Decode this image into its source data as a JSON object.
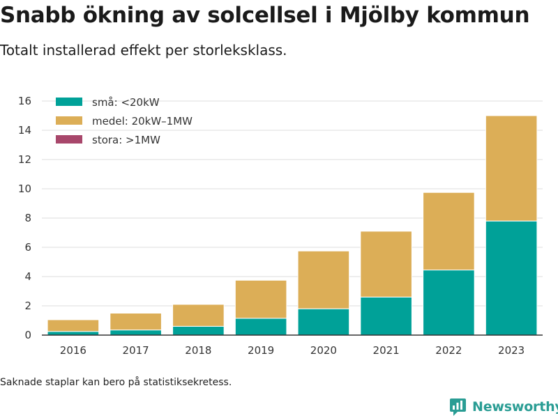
{
  "header": {
    "title": "Snabb ökning av solcellsel i Mjölby kommun",
    "subtitle": "Totalt installerad effekt per storleksklass."
  },
  "footer": {
    "note": "Saknade staplar kan bero på statistiksekretess.",
    "brand": "Newsworthy",
    "brand_icon": "bar-chart-logo-icon",
    "brand_color": "#2a9d94"
  },
  "chart_data": {
    "type": "bar",
    "stacked": true,
    "title": "Snabb ökning av solcellsel i Mjölby kommun",
    "subtitle": "Totalt installerad effekt per storleksklass.",
    "xlabel": "",
    "ylabel": "",
    "categories": [
      "2016",
      "2017",
      "2018",
      "2019",
      "2020",
      "2021",
      "2022",
      "2023"
    ],
    "ylim": [
      0,
      16
    ],
    "yticks": [
      0,
      2,
      4,
      6,
      8,
      10,
      12,
      14,
      16
    ],
    "grid": "horizontal",
    "legend_position": "top-left",
    "series": [
      {
        "name": "små: <20kW",
        "color": "#00a198",
        "values": [
          0.25,
          0.35,
          0.6,
          1.15,
          1.8,
          2.6,
          4.45,
          7.8
        ]
      },
      {
        "name": "medel: 20kW–1MW",
        "color": "#dcae57",
        "values": [
          0.8,
          1.15,
          1.5,
          2.6,
          3.95,
          4.5,
          5.3,
          7.2
        ]
      },
      {
        "name": "stora: >1MW",
        "color": "#a8476b",
        "values": [
          0,
          0,
          0,
          0,
          0,
          0,
          0,
          0
        ]
      }
    ]
  }
}
